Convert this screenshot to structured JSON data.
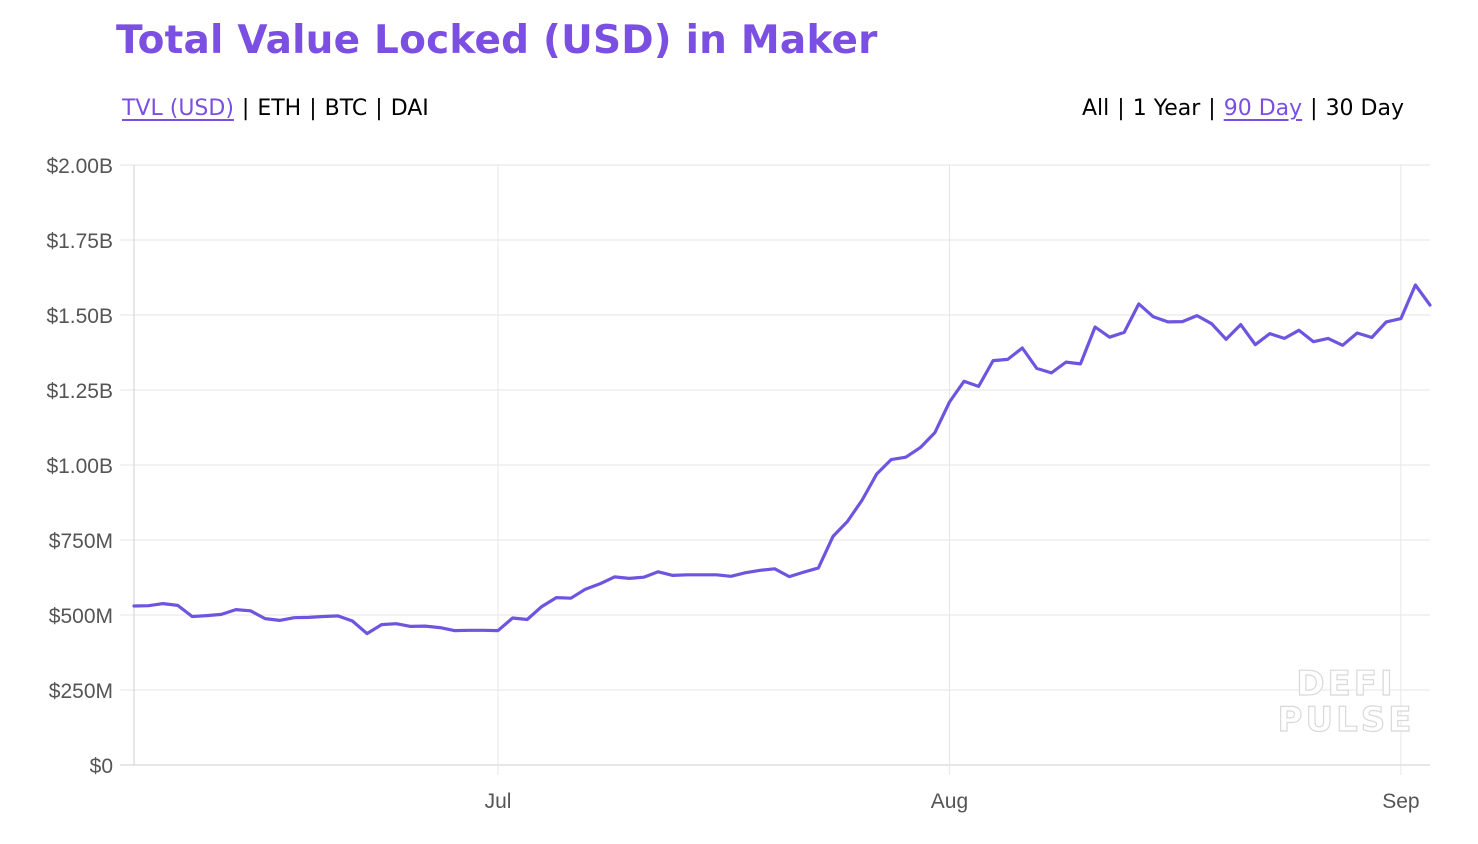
{
  "title": "Total Value Locked (USD) in Maker",
  "metric_toggle": {
    "options": [
      "TVL (USD)",
      "ETH",
      "BTC",
      "DAI"
    ],
    "selected": "TVL (USD)",
    "separator": "|"
  },
  "range_toggle": {
    "options": [
      "All",
      "1 Year",
      "90 Day",
      "30 Day"
    ],
    "selected": "90 Day",
    "separator": "|"
  },
  "watermark": [
    "DEFI",
    "PULSE"
  ],
  "colors": {
    "accent": "#7b4fe2",
    "line": "#6e55e0",
    "grid": "#e6e6e6",
    "axis": "#cfcfcf"
  },
  "chart_data": {
    "type": "line",
    "x_ticks": [
      "Jul",
      "Aug",
      "Sep"
    ],
    "y_ticks": [
      "$0",
      "$250M",
      "$500M",
      "$750M",
      "$1.00B",
      "$1.25B",
      "$1.50B",
      "$1.75B",
      "$2.00B"
    ],
    "ylim": [
      0,
      2000
    ],
    "y_unit": "USD millions",
    "grid": true,
    "series": [
      {
        "x_start": "2020-06-06",
        "x_end": "2020-09-03",
        "values": [
          530,
          531,
          538,
          532,
          495,
          498,
          502,
          518,
          514,
          488,
          482,
          491,
          492,
          495,
          497,
          480,
          438,
          468,
          471,
          462,
          463,
          458,
          448,
          449,
          449,
          448,
          490,
          485,
          528,
          558,
          556,
          586,
          604,
          627,
          622,
          626,
          644,
          632,
          634,
          634,
          634,
          629,
          641,
          649,
          654,
          628,
          643,
          657,
          762,
          812,
          883,
          970,
          1018,
          1026,
          1058,
          1108,
          1210,
          1279,
          1262,
          1348,
          1352,
          1390,
          1322,
          1307,
          1343,
          1337,
          1460,
          1426,
          1442,
          1537,
          1494,
          1477,
          1478,
          1498,
          1471,
          1419,
          1468,
          1401,
          1438,
          1422,
          1449,
          1411,
          1422,
          1399,
          1440,
          1425,
          1477,
          1488,
          1600,
          1533
        ]
      }
    ]
  }
}
